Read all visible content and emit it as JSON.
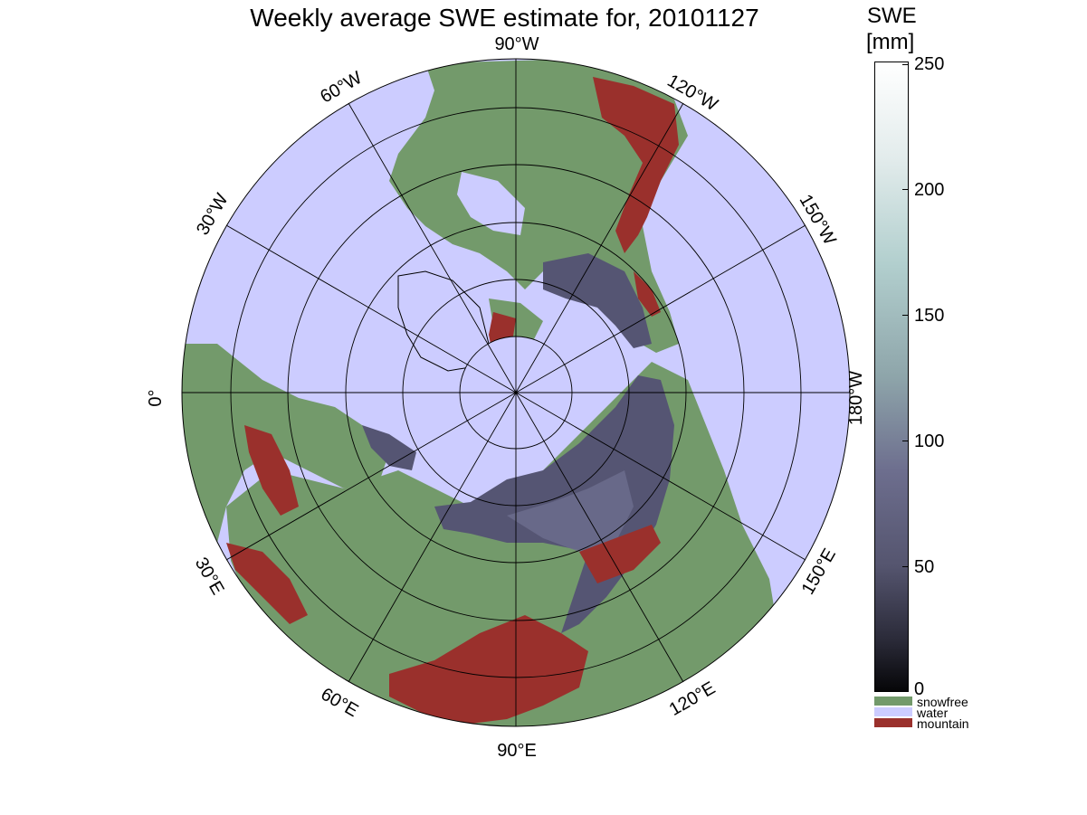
{
  "title": "Weekly average SWE estimate for, 20101127",
  "map": {
    "projection": "polar-stereographic-north",
    "colors": {
      "water": "#ccccff",
      "snowfree": "#739a6b",
      "mountain": "#9a302c",
      "snow": "#555573",
      "coast": "#000000"
    },
    "longitude_labels": [
      "0°",
      "30°W",
      "60°W",
      "90°W",
      "120°W",
      "150°W",
      "180°W",
      "150°E",
      "120°E",
      "90°E",
      "60°E",
      "30°E"
    ]
  },
  "colorbar": {
    "title_line1": "SWE",
    "title_line2": "[mm]",
    "ticks": [
      "250",
      "200",
      "150",
      "100",
      "50",
      "0"
    ],
    "range": [
      0,
      250
    ],
    "categories": [
      {
        "label": "snowfree",
        "color": "#739a6b"
      },
      {
        "label": "water",
        "color": "#ccccff"
      },
      {
        "label": "mountain",
        "color": "#9a302c"
      }
    ]
  }
}
